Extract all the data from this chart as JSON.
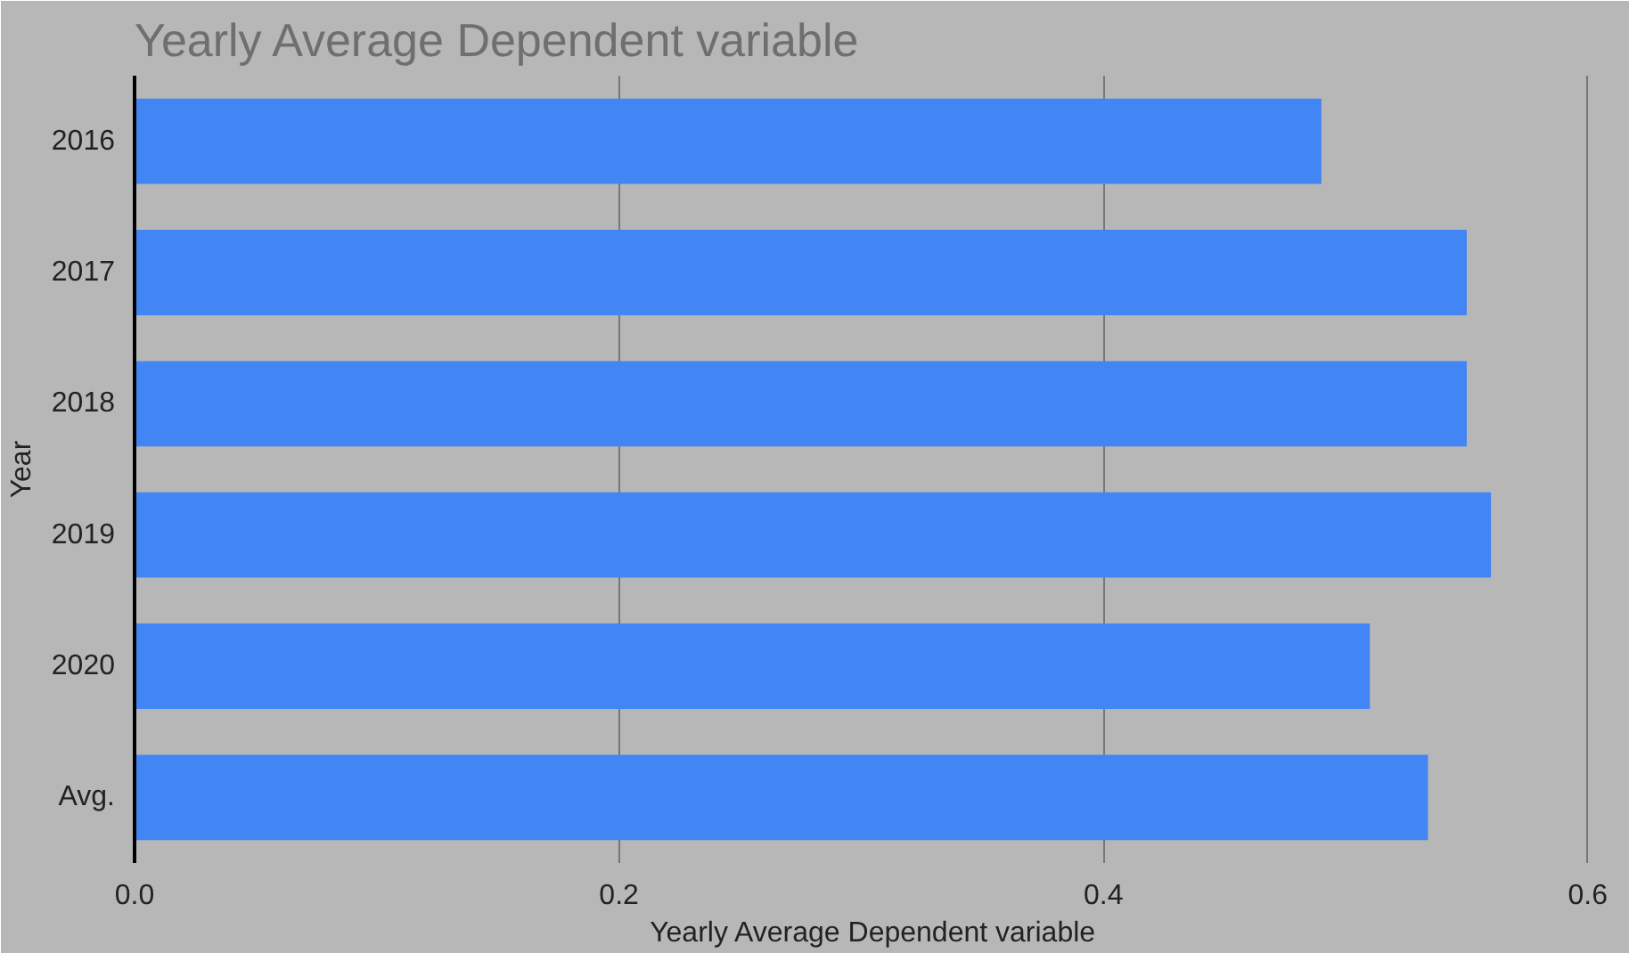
{
  "chart_data": {
    "type": "bar",
    "orientation": "horizontal",
    "title": "Yearly Average Dependent variable",
    "xlabel": "Yearly Average Dependent variable",
    "ylabel": "Year",
    "categories": [
      "2016",
      "2017",
      "2018",
      "2019",
      "2020",
      "Avg."
    ],
    "series": [
      {
        "color": "#4285f4",
        "values": [
          0.49,
          0.55,
          0.55,
          0.56,
          0.51,
          0.534
        ]
      }
    ],
    "xlim": [
      0,
      0.61
    ],
    "xticks": [
      {
        "value": 0,
        "label": "0.0"
      },
      {
        "value": 0.2,
        "label": "0.2"
      },
      {
        "value": 0.4,
        "label": "0.4"
      },
      {
        "value": 0.6,
        "label": "0.6"
      }
    ],
    "grid": "x"
  }
}
